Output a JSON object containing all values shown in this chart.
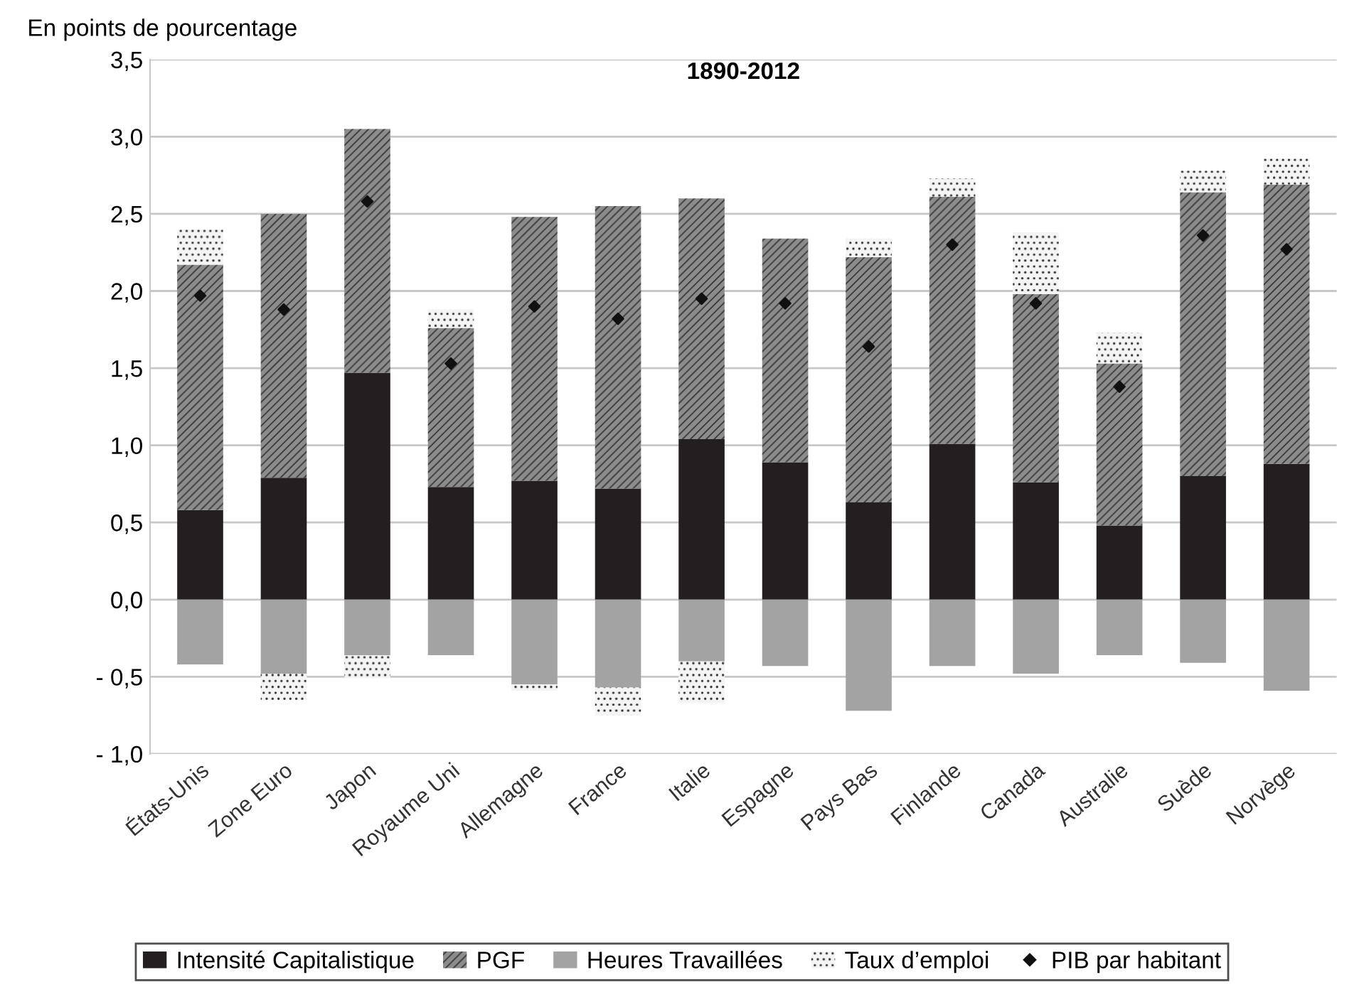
{
  "chart_data": {
    "type": "bar",
    "title": "1890-2012",
    "ylabel": "En points de pourcentage",
    "categories": [
      "États-Unis",
      "Zone Euro",
      "Japon",
      "Royaume Uni",
      "Allemagne",
      "France",
      "Italie",
      "Espagne",
      "Pays Bas",
      "Finlande",
      "Canada",
      "Australie",
      "Suède",
      "Norvège"
    ],
    "stacked": true,
    "series": [
      {
        "name": "Intensité Capitalistique",
        "color": "#231f20",
        "values": [
          0.58,
          0.79,
          1.47,
          0.73,
          0.77,
          0.72,
          1.04,
          0.89,
          0.63,
          1.01,
          0.76,
          0.48,
          0.8,
          0.88
        ]
      },
      {
        "name": "PGF",
        "color": "#8c8c8c",
        "values": [
          1.59,
          1.71,
          1.58,
          1.03,
          1.71,
          1.83,
          1.56,
          1.45,
          1.59,
          1.6,
          1.22,
          1.05,
          1.84,
          1.81
        ]
      },
      {
        "name": "Heures Travaillées",
        "color": "#a3a3a3",
        "values": [
          -0.42,
          -0.48,
          -0.36,
          -0.36,
          -0.55,
          -0.57,
          -0.4,
          -0.43,
          -0.72,
          -0.43,
          -0.48,
          -0.36,
          -0.41,
          -0.59
        ]
      },
      {
        "name": "Taux d’emploi",
        "color": "#f4f4f4",
        "values": [
          0.23,
          -0.17,
          -0.15,
          0.12,
          -0.04,
          -0.18,
          -0.27,
          null,
          0.12,
          0.12,
          0.4,
          0.2,
          0.14,
          0.17
        ]
      },
      {
        "name": "PIB par habitant",
        "type": "scatter",
        "marker": "diamond",
        "color": "#111111",
        "values": [
          1.97,
          1.88,
          2.58,
          1.53,
          1.9,
          1.82,
          1.95,
          1.92,
          1.64,
          2.3,
          1.92,
          1.38,
          2.36,
          2.27
        ]
      }
    ],
    "ylim": [
      -1.0,
      3.5
    ],
    "yticks": [
      {
        "value": -1.0,
        "label": "- 1,0"
      },
      {
        "value": -0.5,
        "label": "- 0,5"
      },
      {
        "value": 0.0,
        "label": "0,0"
      },
      {
        "value": 0.5,
        "label": "0,5"
      },
      {
        "value": 1.0,
        "label": "1,0"
      },
      {
        "value": 1.5,
        "label": "1,5"
      },
      {
        "value": 2.0,
        "label": "2,0"
      },
      {
        "value": 2.5,
        "label": "2,5"
      },
      {
        "value": 3.0,
        "label": "3,0"
      },
      {
        "value": 3.5,
        "label": "3,5"
      }
    ],
    "grid": "y",
    "legend": "bottom"
  }
}
